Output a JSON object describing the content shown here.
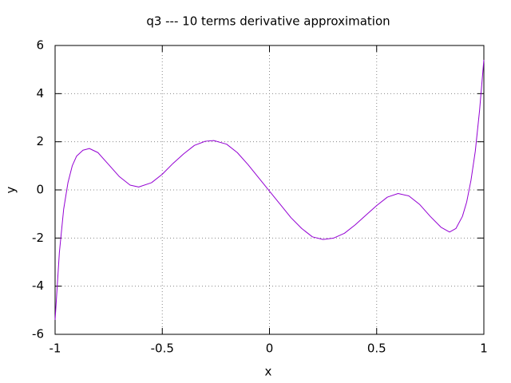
{
  "chart_data": {
    "type": "line",
    "title": "q3 --- 10 terms derivative approximation",
    "x_label": "x",
    "y_label": "y",
    "x": [
      -1,
      -0.98,
      -0.96,
      -0.94,
      -0.92,
      -0.9,
      -0.87,
      -0.84,
      -0.8,
      -0.75,
      -0.7,
      -0.65,
      -0.61,
      -0.55,
      -0.5,
      -0.45,
      -0.4,
      -0.35,
      -0.3,
      -0.26,
      -0.2,
      -0.15,
      -0.1,
      -0.05,
      0,
      0.05,
      0.1,
      0.15,
      0.2,
      0.25,
      0.3,
      0.35,
      0.4,
      0.45,
      0.5,
      0.55,
      0.6,
      0.65,
      0.7,
      0.75,
      0.8,
      0.84,
      0.87,
      0.9,
      0.92,
      0.94,
      0.96,
      0.98,
      1
    ],
    "series": [
      {
        "color": "#9400d3",
        "values": [
          -5.4,
          -2.6,
          -0.8,
          0.3,
          1.0,
          1.4,
          1.65,
          1.72,
          1.55,
          1.05,
          0.55,
          0.2,
          0.12,
          0.3,
          0.65,
          1.1,
          1.5,
          1.85,
          2.02,
          2.05,
          1.9,
          1.55,
          1.05,
          0.5,
          -0.05,
          -0.6,
          -1.15,
          -1.6,
          -1.95,
          -2.06,
          -2.0,
          -1.8,
          -1.45,
          -1.05,
          -0.65,
          -0.3,
          -0.15,
          -0.25,
          -0.6,
          -1.1,
          -1.55,
          -1.75,
          -1.6,
          -1.1,
          -0.5,
          0.4,
          1.6,
          3.3,
          5.4
        ]
      }
    ],
    "xlim": [
      -1,
      1
    ],
    "ylim": [
      -6,
      6
    ],
    "xticks": [
      -1,
      -0.5,
      0,
      0.5,
      1
    ],
    "yticks": [
      -6,
      -4,
      -2,
      0,
      2,
      4,
      6
    ],
    "grid": true
  }
}
